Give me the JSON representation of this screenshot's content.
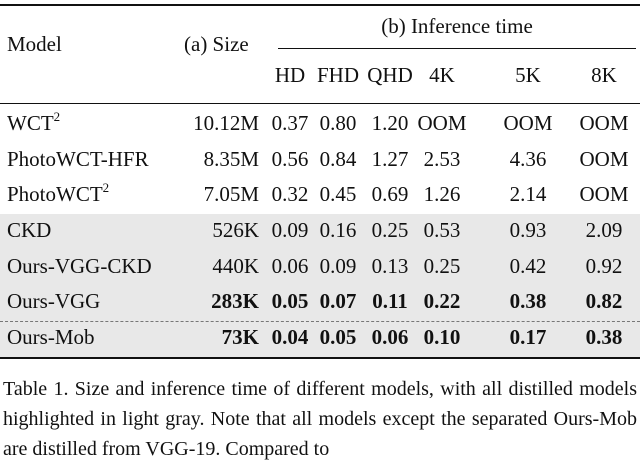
{
  "header": {
    "model": "Model",
    "size": "(a) Size",
    "time_group": "(b) Inference time",
    "resolutions": [
      "HD",
      "FHD",
      "QHD",
      "4K",
      "5K",
      "8K"
    ]
  },
  "rows": [
    {
      "name": "WCT",
      "sup": "2",
      "size": "10.12M",
      "times": [
        "0.37",
        "0.80",
        "1.20",
        "OOM",
        "OOM",
        "OOM"
      ],
      "shaded": false,
      "bold": false
    },
    {
      "name": "PhotoWCT-HFR",
      "sup": "",
      "size": "8.35M",
      "times": [
        "0.56",
        "0.84",
        "1.27",
        "2.53",
        "4.36",
        "OOM"
      ],
      "shaded": false,
      "bold": false
    },
    {
      "name": "PhotoWCT",
      "sup": "2",
      "size": "7.05M",
      "times": [
        "0.32",
        "0.45",
        "0.69",
        "1.26",
        "2.14",
        "OOM"
      ],
      "shaded": false,
      "bold": false
    },
    {
      "name": "CKD",
      "sup": "",
      "size": "526K",
      "times": [
        "0.09",
        "0.16",
        "0.25",
        "0.53",
        "0.93",
        "2.09"
      ],
      "shaded": true,
      "bold": false
    },
    {
      "name": "Ours-VGG-CKD",
      "sup": "",
      "size": "440K",
      "times": [
        "0.06",
        "0.09",
        "0.13",
        "0.25",
        "0.42",
        "0.92"
      ],
      "shaded": true,
      "bold": false
    },
    {
      "name": "Ours-VGG",
      "sup": "",
      "size": "283K",
      "times": [
        "0.05",
        "0.07",
        "0.11",
        "0.22",
        "0.38",
        "0.82"
      ],
      "shaded": true,
      "bold": true
    },
    {
      "name": "Ours-Mob",
      "sup": "",
      "size": "73K",
      "times": [
        "0.04",
        "0.05",
        "0.06",
        "0.10",
        "0.17",
        "0.38"
      ],
      "shaded": true,
      "bold": true
    }
  ],
  "caption": "Table 1. Size and inference time of different models, with all distilled models highlighted in light gray. Note that all models except the separated Ours-Mob are distilled from VGG-19. Compared to"
}
